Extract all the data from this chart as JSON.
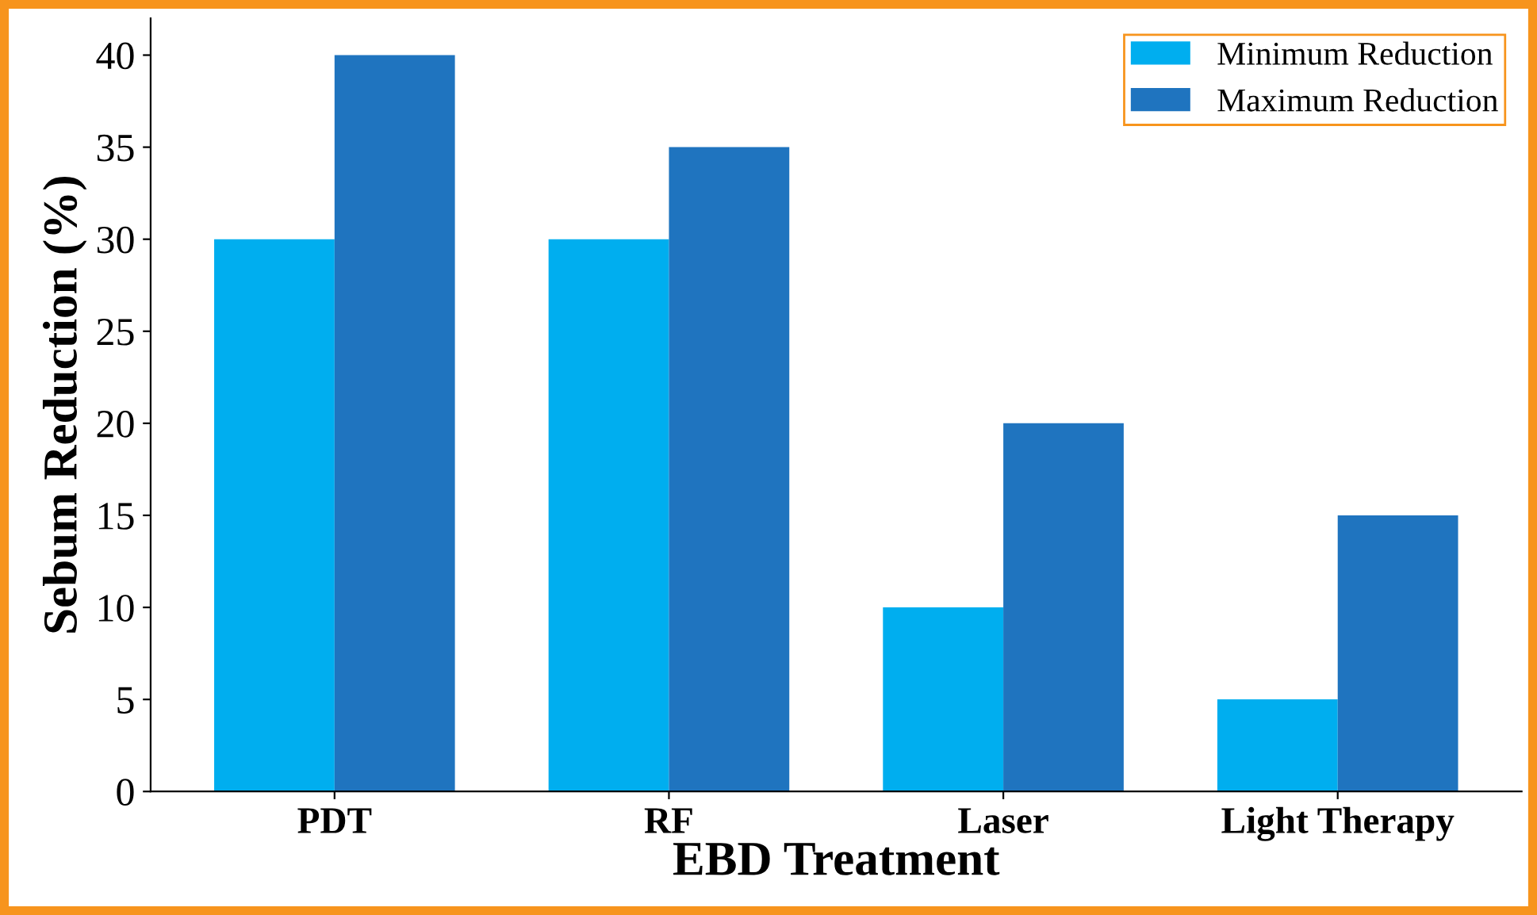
{
  "chart_data": {
    "type": "bar",
    "xlabel": "EBD Treatment",
    "ylabel": "Sebum Reduction (%)",
    "categories": [
      "PDT",
      "RF",
      "Laser",
      "Light Therapy"
    ],
    "series": [
      {
        "name": "Minimum Reduction",
        "color": "#00aeef",
        "values": [
          30,
          30,
          10,
          5
        ]
      },
      {
        "name": "Maximum Reduction",
        "color": "#1f74bf",
        "values": [
          40,
          35,
          20,
          15
        ]
      }
    ],
    "ylim": [
      0,
      42
    ],
    "yticks": [
      0,
      5,
      10,
      15,
      20,
      25,
      30,
      35,
      40
    ],
    "grid": false,
    "legend": "top right"
  }
}
